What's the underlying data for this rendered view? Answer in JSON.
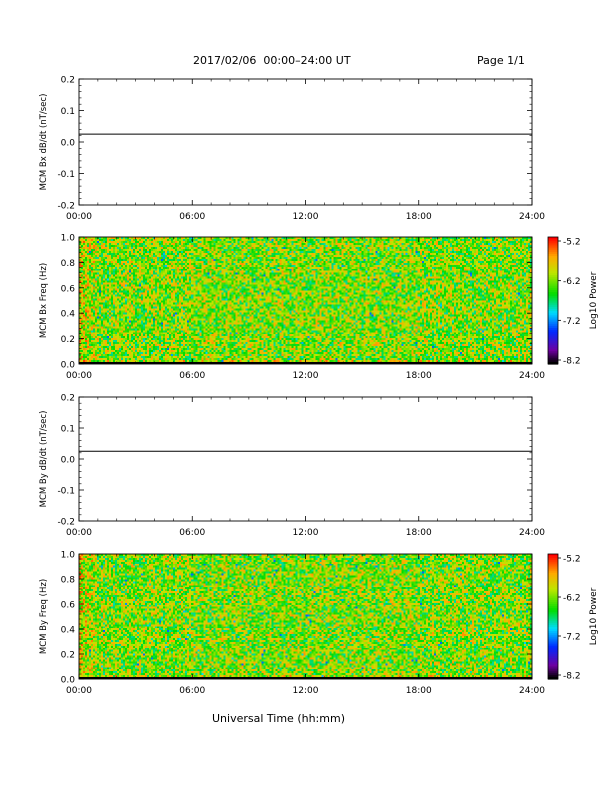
{
  "header": {
    "title": "2017/02/06  00:00–24:00 UT",
    "page": "Page 1/1"
  },
  "footer": {
    "xlabel": "Universal Time (hh:mm)"
  },
  "chart_data": [
    {
      "type": "line",
      "ylabel": "MCM Bx dB/dt (nT/sec)",
      "x_ticks": [
        "00:00",
        "06:00",
        "12:00",
        "18:00",
        "24:00"
      ],
      "xlim": [
        0,
        24
      ],
      "ylim": [
        -0.2,
        0.2
      ],
      "y_ticks": [
        "-0.2",
        "-0.1",
        "0.0",
        "0.1",
        "0.2"
      ],
      "y_tick_values": [
        -0.2,
        -0.1,
        0.0,
        0.1,
        0.2
      ],
      "series": [
        {
          "x": [
            0,
            24
          ],
          "y": [
            0.025,
            0.025
          ]
        }
      ]
    },
    {
      "type": "heatmap",
      "ylabel": "MCM Bx Freq (Hz)",
      "x_ticks": [
        "00:00",
        "06:00",
        "12:00",
        "18:00",
        "24:00"
      ],
      "xlim": [
        0,
        24
      ],
      "ylim": [
        0,
        1.0
      ],
      "y_ticks": [
        "0.0",
        "0.2",
        "0.4",
        "0.6",
        "0.8",
        "1.0"
      ],
      "y_tick_values": [
        0,
        0.2,
        0.4,
        0.6,
        0.8,
        1.0
      ],
      "colorbar": {
        "label": "Log10 Power",
        "ticks": [
          "-5.2",
          "-6.2",
          "-7.2",
          "-8.2"
        ],
        "range": [
          -8.2,
          -5.2
        ]
      }
    },
    {
      "type": "line",
      "ylabel": "MCM By dB/dt (nT/sec)",
      "x_ticks": [
        "00:00",
        "06:00",
        "12:00",
        "18:00",
        "24:00"
      ],
      "xlim": [
        0,
        24
      ],
      "ylim": [
        -0.2,
        0.2
      ],
      "y_ticks": [
        "-0.2",
        "-0.1",
        "0.0",
        "0.1",
        "0.2"
      ],
      "y_tick_values": [
        -0.2,
        -0.1,
        0.0,
        0.1,
        0.2
      ],
      "series": [
        {
          "x": [
            0,
            24
          ],
          "y": [
            0.025,
            0.025
          ]
        }
      ]
    },
    {
      "type": "heatmap",
      "ylabel": "MCM By Freq (Hz)",
      "x_ticks": [
        "00:00",
        "06:00",
        "12:00",
        "18:00",
        "24:00"
      ],
      "xlim": [
        0,
        24
      ],
      "ylim": [
        0,
        1.0
      ],
      "y_ticks": [
        "0.0",
        "0.2",
        "0.4",
        "0.6",
        "0.8",
        "1.0"
      ],
      "y_tick_values": [
        0,
        0.2,
        0.4,
        0.6,
        0.8,
        1.0
      ],
      "colorbar": {
        "label": "Log10 Power",
        "ticks": [
          "-5.2",
          "-6.2",
          "-7.2",
          "-8.2"
        ],
        "range": [
          -8.2,
          -5.2
        ]
      }
    }
  ]
}
